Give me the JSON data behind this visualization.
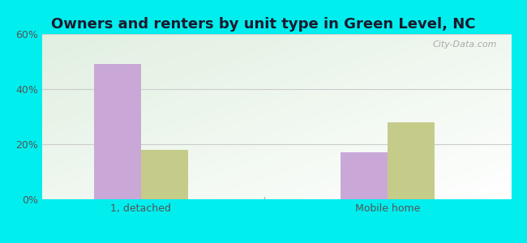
{
  "title": "Owners and renters by unit type in Green Level, NC",
  "categories": [
    "1, detached",
    "Mobile home"
  ],
  "owner_values": [
    49,
    17
  ],
  "renter_values": [
    18,
    28
  ],
  "owner_color": "#C9A8D8",
  "renter_color": "#C5CC8A",
  "ylim": [
    0,
    60
  ],
  "yticks": [
    0,
    20,
    40,
    60
  ],
  "ytick_labels": [
    "0%",
    "20%",
    "40%",
    "60%"
  ],
  "bar_width": 0.38,
  "background_outer": "#00EEEE",
  "grid_color": "#cccccc",
  "title_fontsize": 13,
  "tick_fontsize": 9,
  "watermark": "City-Data.com",
  "group_positions": [
    1.0,
    3.0
  ],
  "xlim": [
    0.2,
    4.0
  ]
}
